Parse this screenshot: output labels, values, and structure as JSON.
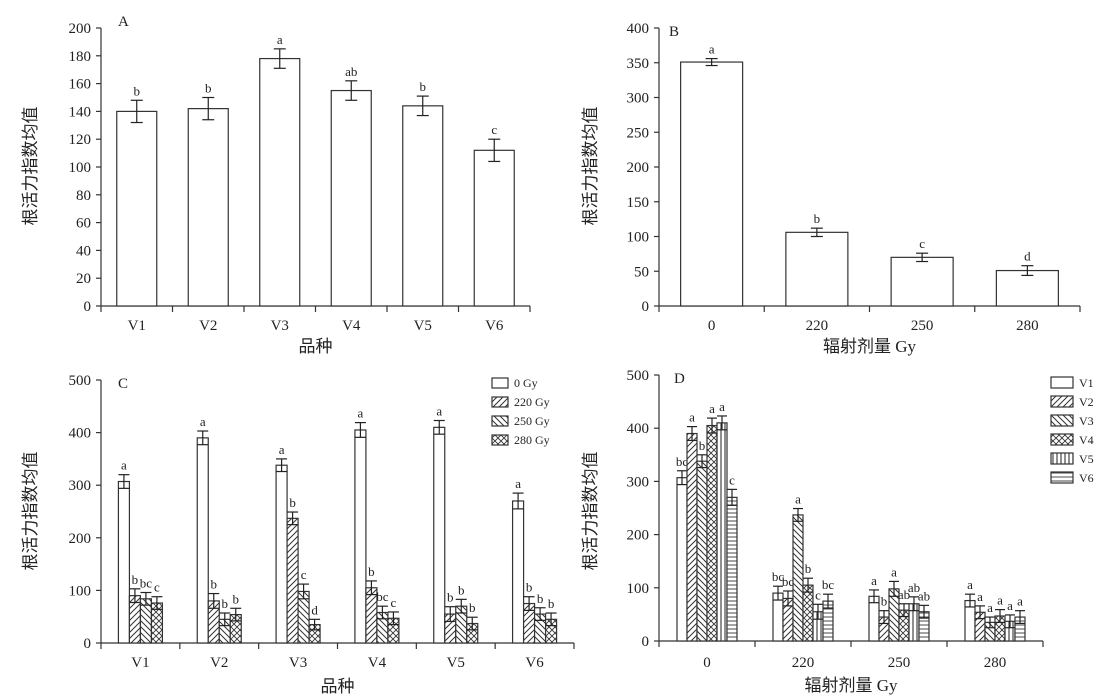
{
  "chart_data": [
    {
      "type": "bar",
      "panel_label": "A",
      "categories": [
        "V1",
        "V2",
        "V3",
        "V4",
        "V5",
        "V6"
      ],
      "values": [
        140,
        142,
        178,
        155,
        144,
        112
      ],
      "errors": [
        8,
        8,
        7,
        7,
        7,
        8
      ],
      "significance": [
        "b",
        "b",
        "a",
        "ab",
        "b",
        "c"
      ],
      "xlabel": "品种",
      "ylabel": "根活力指数均值",
      "ylim": [
        0,
        200
      ],
      "yticks": [
        0,
        20,
        40,
        60,
        80,
        100,
        120,
        140,
        160,
        180,
        200
      ],
      "yticklabels": [
        "0",
        "20",
        "40",
        "60",
        "80",
        "100",
        "120",
        "140",
        "160",
        "180",
        "200"
      ]
    },
    {
      "type": "bar",
      "panel_label": "B",
      "categories": [
        "0",
        "220",
        "250",
        "280"
      ],
      "values": [
        351,
        106,
        70,
        51
      ],
      "errors": [
        5,
        6,
        6,
        7
      ],
      "significance": [
        "a",
        "b",
        "c",
        "d"
      ],
      "xlabel": "辐射剂量 Gy",
      "ylabel": "根活力指数均值",
      "ylim": [
        0,
        400
      ],
      "yticks": [
        0,
        50,
        100,
        150,
        200,
        250,
        300,
        350,
        400
      ],
      "yticklabels": [
        "0",
        "50",
        "100",
        "150",
        "200",
        "250",
        "300",
        "350",
        "400"
      ]
    },
    {
      "type": "bar",
      "panel_label": "C",
      "categories": [
        "V1",
        "V2",
        "V3",
        "V4",
        "V5",
        "V6"
      ],
      "series": [
        {
          "name": "0 Gy",
          "values": [
            307,
            390,
            338,
            405,
            410,
            270
          ],
          "errors": [
            13,
            13,
            12,
            14,
            13,
            15
          ],
          "significance": [
            "a",
            "a",
            "a",
            "a",
            "a",
            "a"
          ]
        },
        {
          "name": "220 Gy",
          "values": [
            90,
            80,
            237,
            105,
            55,
            75
          ],
          "errors": [
            13,
            14,
            12,
            13,
            14,
            13
          ],
          "significance": [
            "b",
            "b",
            "b",
            "b",
            "b",
            "b"
          ]
        },
        {
          "name": "250 Gy",
          "values": [
            84,
            45,
            98,
            58,
            70,
            55
          ],
          "errors": [
            12,
            12,
            14,
            12,
            13,
            12
          ],
          "significance": [
            "bc",
            "b",
            "c",
            "bc",
            "b",
            "b"
          ]
        },
        {
          "name": "280 Gy",
          "values": [
            76,
            54,
            35,
            47,
            37,
            45
          ],
          "errors": [
            12,
            12,
            10,
            12,
            12,
            12
          ],
          "significance": [
            "c",
            "b",
            "d",
            "c",
            "b",
            "b"
          ]
        }
      ],
      "xlabel": "品种",
      "ylabel": "根活力指数均值",
      "ylim": [
        0,
        500
      ],
      "yticks": [
        0,
        100,
        200,
        300,
        400,
        500
      ],
      "yticklabels": [
        "0",
        "100",
        "200",
        "300",
        "400",
        "500"
      ],
      "legend": "top-right"
    },
    {
      "type": "bar",
      "panel_label": "D",
      "categories": [
        "0",
        "220",
        "250",
        "280"
      ],
      "series": [
        {
          "name": "V1",
          "values": [
            307,
            90,
            84,
            76
          ],
          "errors": [
            13,
            13,
            12,
            12
          ],
          "significance": [
            "bc",
            "bc",
            "a",
            "a"
          ]
        },
        {
          "name": "V2",
          "values": [
            390,
            80,
            45,
            54
          ],
          "errors": [
            13,
            14,
            12,
            12
          ],
          "significance": [
            "a",
            "bc",
            "b",
            "a"
          ]
        },
        {
          "name": "V3",
          "values": [
            338,
            237,
            98,
            35
          ],
          "errors": [
            12,
            12,
            14,
            10
          ],
          "significance": [
            "b",
            "a",
            "a",
            "a"
          ]
        },
        {
          "name": "V4",
          "values": [
            405,
            105,
            58,
            47
          ],
          "errors": [
            14,
            13,
            12,
            12
          ],
          "significance": [
            "a",
            "b",
            "ab",
            "a"
          ]
        },
        {
          "name": "V5",
          "values": [
            410,
            55,
            70,
            37
          ],
          "errors": [
            13,
            14,
            13,
            12
          ],
          "significance": [
            "a",
            "c",
            "ab",
            "a"
          ]
        },
        {
          "name": "V6",
          "values": [
            270,
            75,
            55,
            45
          ],
          "errors": [
            15,
            13,
            12,
            12
          ],
          "significance": [
            "c",
            "bc",
            "ab",
            "a"
          ]
        }
      ],
      "xlabel": "辐射剂量 Gy",
      "ylabel": "根活力指数均值",
      "ylim": [
        0,
        500
      ],
      "yticks": [
        0,
        100,
        200,
        300,
        400,
        500
      ],
      "yticklabels": [
        "0",
        "100",
        "200",
        "300",
        "400",
        "500"
      ],
      "legend": "top-right"
    }
  ],
  "colors": {
    "bar_fill": "#ffffff",
    "bar_stroke": "#333333",
    "axis": "#333333"
  }
}
